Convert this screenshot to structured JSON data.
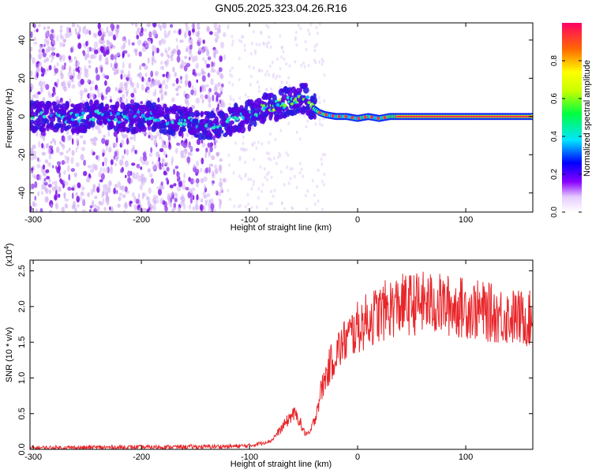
{
  "title": "GN05.2025.323.04.26.R16",
  "chart_data": [
    {
      "type": "heatmap",
      "name": "spectrogram",
      "xlabel": "Height of straight line (km)",
      "ylabel": "Frequency (Hz)",
      "xlim": [
        -303,
        162
      ],
      "ylim": [
        -50,
        49
      ],
      "xticks": [
        -300,
        -200,
        -100,
        0,
        100
      ],
      "xtick_labels": [
        "-300",
        "-200",
        "-100",
        "0",
        "100"
      ],
      "yticks": [
        -40,
        -20,
        0,
        20,
        40
      ],
      "ytick_labels": [
        "-40",
        "-20",
        "0",
        "20",
        "40"
      ],
      "trace": {
        "x": [
          -300,
          -280,
          -260,
          -240,
          -220,
          -200,
          -180,
          -160,
          -140,
          -130,
          -120,
          -110,
          -100,
          -90,
          -80,
          -70,
          -60,
          -50,
          -45,
          -40,
          -35,
          -30,
          -20,
          -10,
          0,
          10,
          20,
          30,
          40,
          60,
          80,
          100,
          120,
          140,
          162
        ],
        "y": [
          0,
          0,
          -1,
          1,
          -1,
          0,
          -1,
          -3,
          -4,
          -5,
          -2,
          -1,
          1,
          4,
          5,
          7,
          8,
          10,
          8,
          4,
          2,
          1,
          0,
          0,
          -1,
          0,
          -1,
          0,
          0,
          0,
          0,
          0,
          0,
          0,
          0
        ]
      }
    },
    {
      "type": "colorbar",
      "name": "amplitude-colorbar",
      "label": "Normalized spectral amplitude",
      "range": [
        0,
        1
      ],
      "ticks": [
        0.0,
        0.2,
        0.4,
        0.6,
        0.8
      ],
      "tick_labels": [
        "0.0",
        "0.2",
        "0.4",
        "0.6",
        "0.8"
      ]
    },
    {
      "type": "line",
      "name": "snr-plot",
      "xlabel": "Height of straight line (km)",
      "ylabel": "SNR (10 * v/v)",
      "scale_label": "(x10",
      "scale_exp": "4",
      "xlim": [
        -303,
        162
      ],
      "ylim": [
        0,
        2.65
      ],
      "xticks": [
        -300,
        -200,
        -100,
        0,
        100
      ],
      "xtick_labels": [
        "-300",
        "-200",
        "-100",
        "0",
        "100"
      ],
      "yticks": [
        0.0,
        0.5,
        1.0,
        1.5,
        2.0,
        2.5
      ],
      "ytick_labels": [
        "0.0",
        "0.5",
        "1.0",
        "1.5",
        "2.0",
        "2.5"
      ],
      "color": "#e8262a",
      "envelope": {
        "x": [
          -303,
          -200,
          -120,
          -100,
          -80,
          -70,
          -60,
          -55,
          -50,
          -45,
          -40,
          -35,
          -30,
          -25,
          -20,
          -10,
          0,
          10,
          20,
          30,
          40,
          60,
          80,
          100,
          120,
          140,
          162
        ],
        "y": [
          0.02,
          0.03,
          0.04,
          0.05,
          0.12,
          0.3,
          0.5,
          0.45,
          0.25,
          0.2,
          0.4,
          0.75,
          1.0,
          1.2,
          1.35,
          1.55,
          1.7,
          1.82,
          1.9,
          1.98,
          2.02,
          2.05,
          2.02,
          1.98,
          1.92,
          1.86,
          1.82
        ]
      }
    }
  ]
}
